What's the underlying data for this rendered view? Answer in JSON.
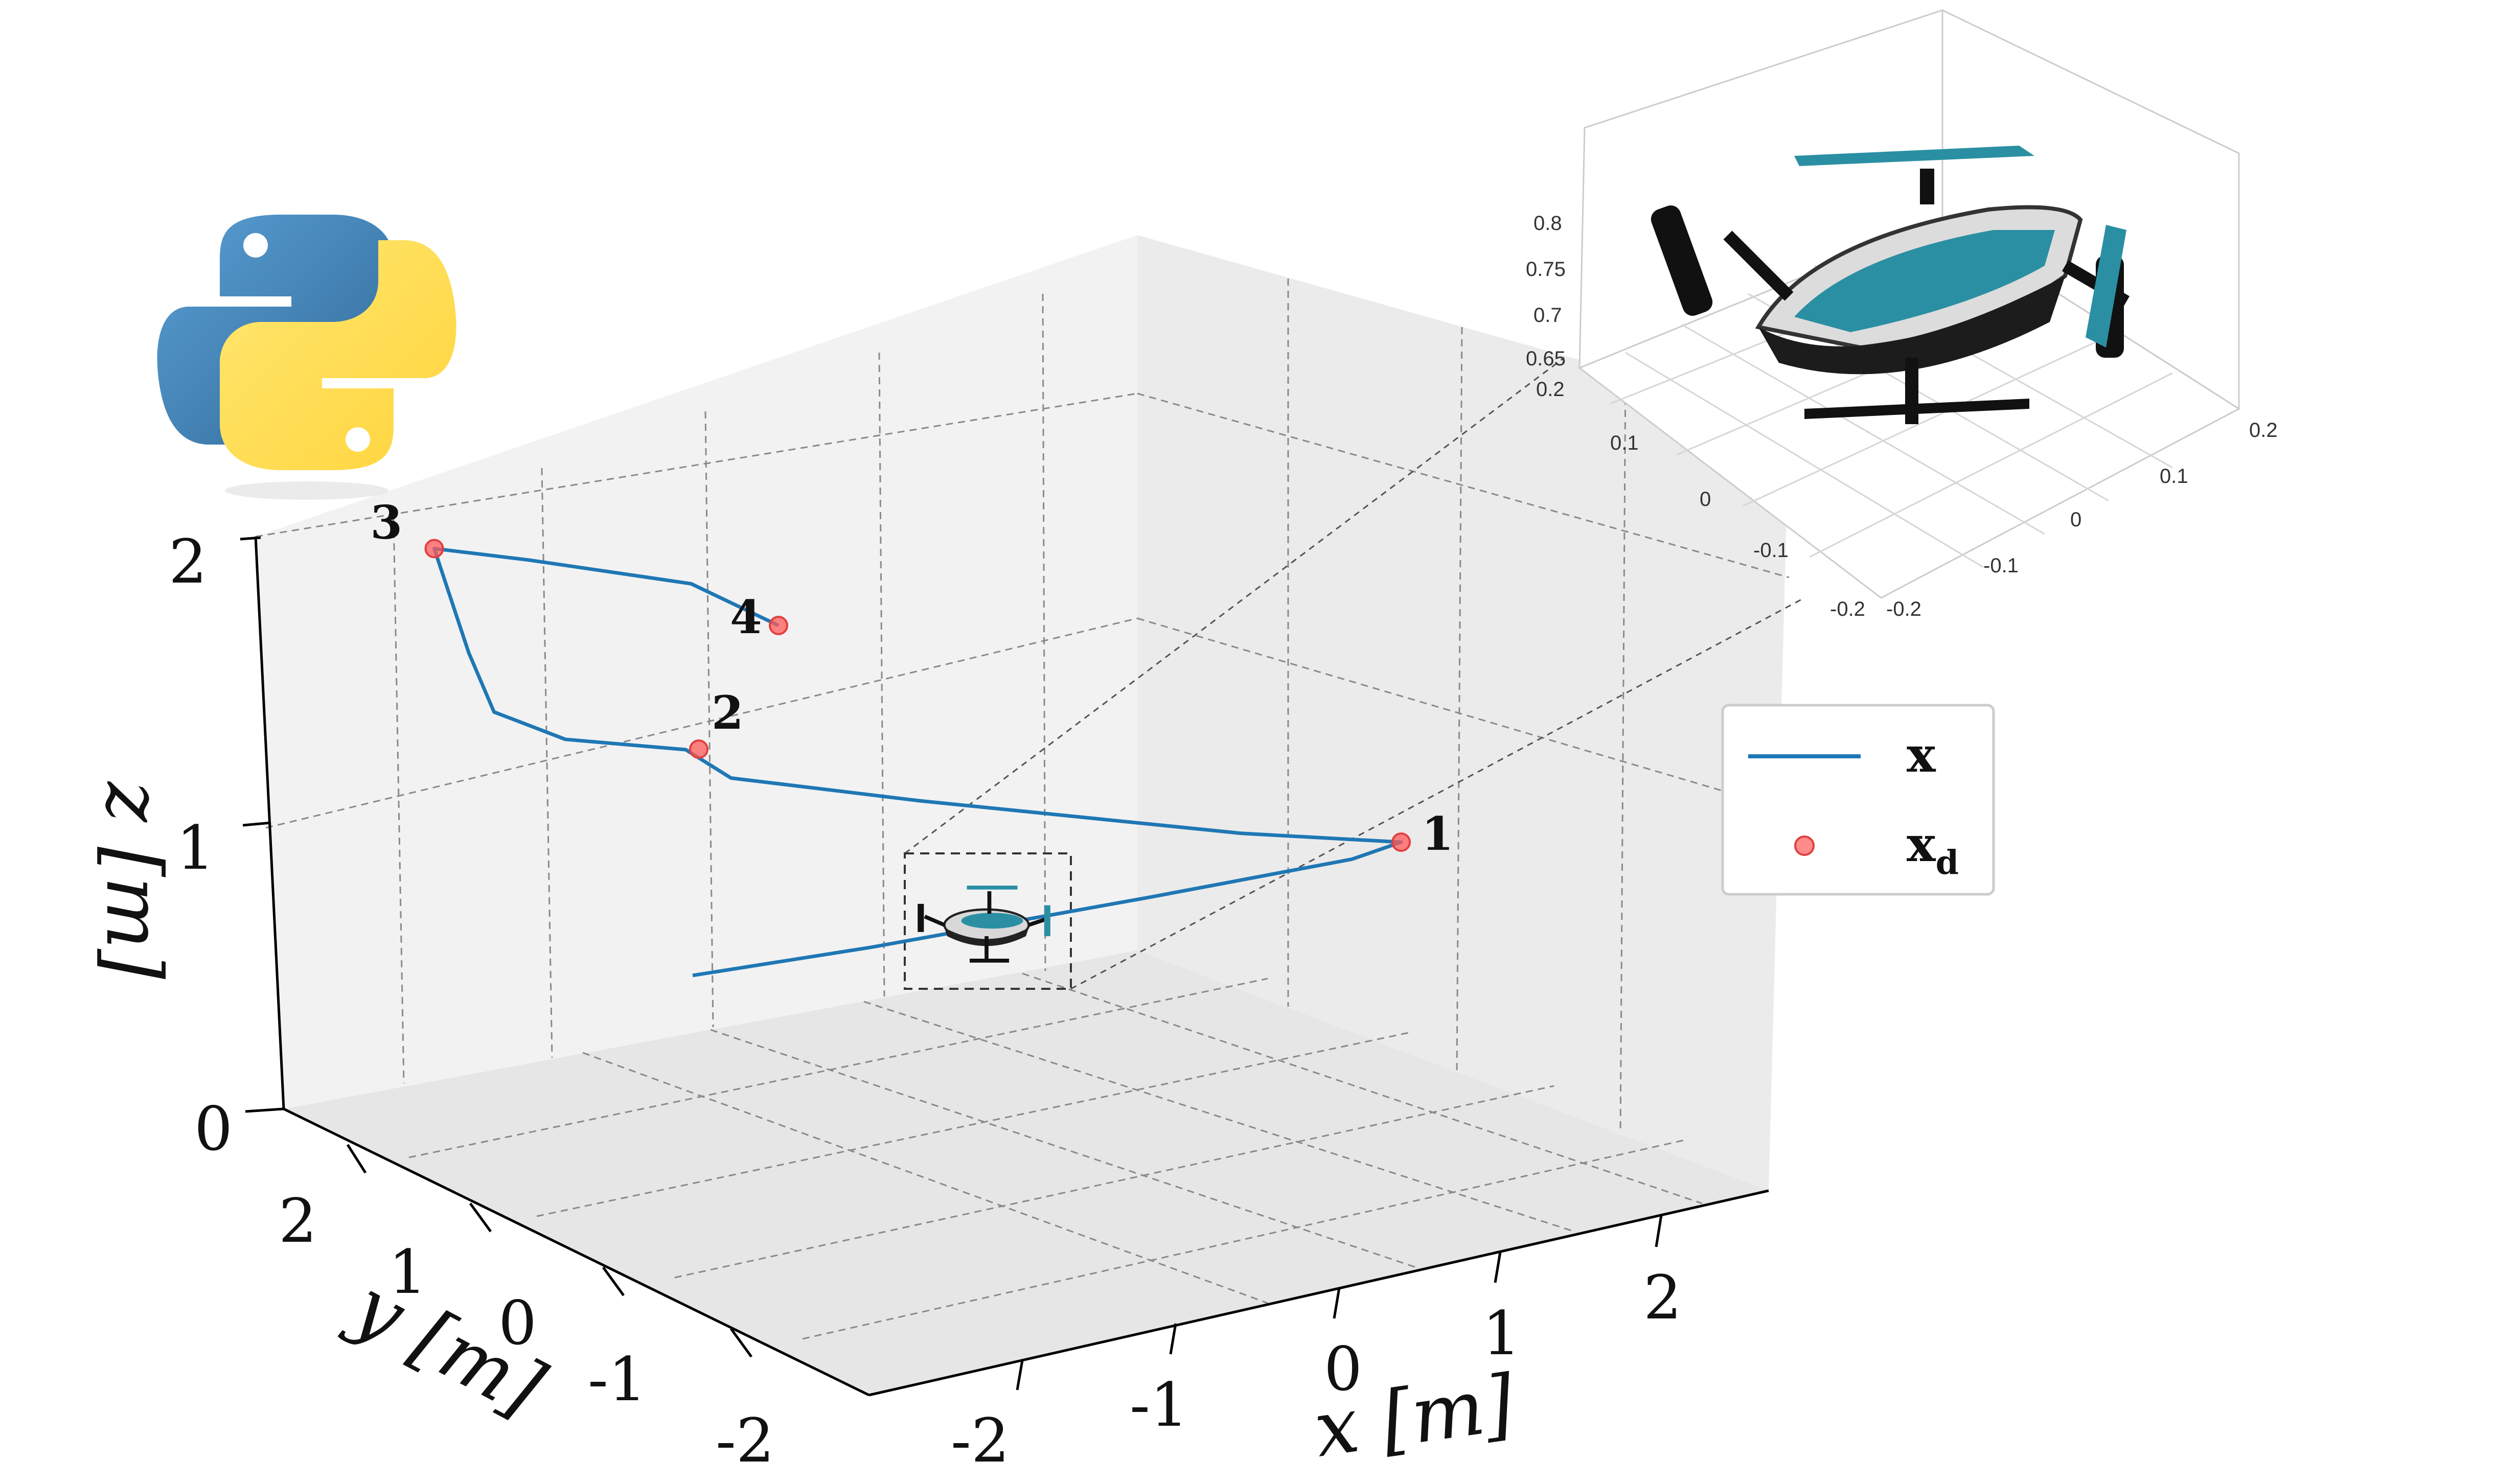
{
  "chart_data": [
    {
      "type": "line",
      "projection": "3d",
      "xlabel": "x [m]",
      "ylabel": "y [m]",
      "zlabel": "z [m]",
      "xticks": [
        "-2",
        "-1",
        "0",
        "1",
        "2"
      ],
      "yticks": [
        "-2",
        "-1",
        "0",
        "1",
        "2"
      ],
      "zticks": [
        "0",
        "1",
        "2"
      ],
      "xlim": [
        -2.5,
        2.5
      ],
      "ylim": [
        -2.5,
        2.5
      ],
      "zlim": [
        0,
        2.2
      ],
      "grid": true,
      "legend": {
        "placement": "right",
        "entries": [
          "x",
          "x_d"
        ]
      },
      "series": [
        {
          "name": "x",
          "color": "#1f77b4",
          "note_shape": "flight trajectory",
          "points": [
            [
              -1.2,
              0.0,
              0.65
            ],
            [
              -0.5,
              0.0,
              0.72
            ],
            [
              0.6,
              0.0,
              0.85
            ],
            [
              1.4,
              0.0,
              0.95
            ],
            [
              1.6,
              0.0,
              1.0
            ],
            [
              1.0,
              0.0,
              1.05
            ],
            [
              -0.2,
              0.0,
              1.2
            ],
            [
              -0.9,
              0.0,
              1.3
            ],
            [
              -1.05,
              0.0,
              1.4
            ],
            [
              -1.5,
              0.0,
              1.45
            ],
            [
              -1.75,
              0.0,
              1.55
            ],
            [
              -1.8,
              0.0,
              1.75
            ],
            [
              -1.85,
              0.0,
              2.1
            ],
            [
              -1.5,
              0.0,
              2.05
            ],
            [
              -0.9,
              0.0,
              1.95
            ],
            [
              -0.6,
              0.0,
              1.8
            ]
          ]
        },
        {
          "name": "x_d",
          "color": "#ff5a5a",
          "marker": "circle",
          "points": [
            {
              "label": "1",
              "xyz": [
                1.6,
                0.0,
                1.0
              ]
            },
            {
              "label": "2",
              "xyz": [
                -1.0,
                0.0,
                1.4
              ]
            },
            {
              "label": "3",
              "xyz": [
                -1.85,
                0.0,
                2.1
              ]
            },
            {
              "label": "4",
              "xyz": [
                -0.6,
                0.0,
                1.8
              ]
            }
          ]
        }
      ]
    },
    {
      "type": "line",
      "projection": "3d",
      "role": "zoom inset of quadrotor",
      "xticks": [
        "-0.2",
        "-0.1",
        "0",
        "0.1",
        "0.2"
      ],
      "yticks": [
        "-0.2",
        "-0.1",
        "0",
        "0.1",
        "0.2"
      ],
      "zticks": [
        "0.65",
        "0.7",
        "0.75",
        "0.8"
      ],
      "grid": true
    }
  ],
  "icons": {
    "logo": "python-logo-icon",
    "drone": "quadrotor-drone-icon"
  },
  "colors": {
    "trajectory": "#1f77b4",
    "waypoint": "#ff5a5a",
    "drone_accent": "#2b8fa3",
    "python_blue": "#3d76a9",
    "python_yellow": "#ffd54a"
  }
}
